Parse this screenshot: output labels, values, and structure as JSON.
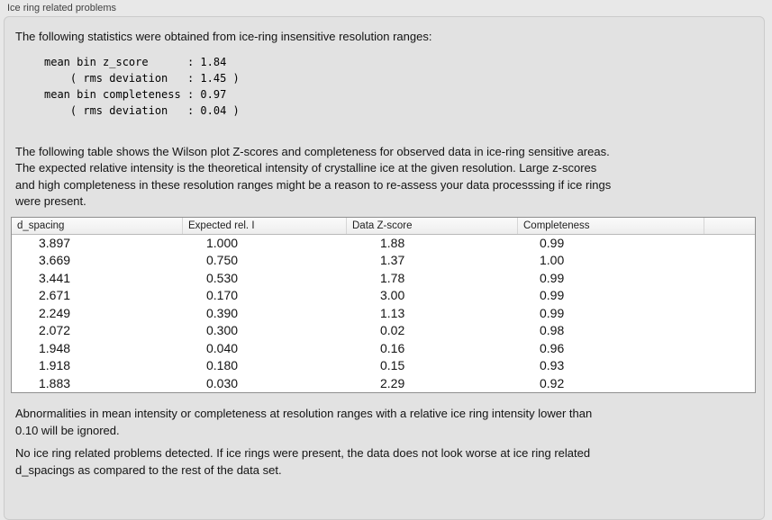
{
  "panel": {
    "title": "Ice ring related problems"
  },
  "stats": {
    "intro": "The following statistics were obtained from ice-ring insensitive resolution ranges:",
    "block": "mean bin z_score      : 1.84\n    ( rms deviation   : 1.45 )\nmean bin completeness : 0.97\n    ( rms deviation   : 0.04 )"
  },
  "table": {
    "description": "The following table shows the Wilson plot Z-scores and completeness for observed data in ice-ring sensitive areas.\nThe expected relative intensity is the theoretical intensity of crystalline ice at the given resolution. Large z-scores\nand high completeness in these resolution ranges might be a reason to re-assess your data processsing if ice rings\nwere present.",
    "columns": [
      "d_spacing",
      "Expected rel. I",
      "Data Z-score",
      "Completeness",
      ""
    ],
    "rows": [
      [
        "3.897",
        "1.000",
        "1.88",
        "0.99"
      ],
      [
        "3.669",
        "0.750",
        "1.37",
        "1.00"
      ],
      [
        "3.441",
        "0.530",
        "1.78",
        "0.99"
      ],
      [
        "2.671",
        "0.170",
        "3.00",
        "0.99"
      ],
      [
        "2.249",
        "0.390",
        "1.13",
        "0.99"
      ],
      [
        "2.072",
        "0.300",
        "0.02",
        "0.98"
      ],
      [
        "1.948",
        "0.040",
        "0.16",
        "0.96"
      ],
      [
        "1.918",
        "0.180",
        "0.15",
        "0.93"
      ],
      [
        "1.883",
        "0.030",
        "2.29",
        "0.92"
      ]
    ]
  },
  "notes": {
    "ignore": "Abnormalities in mean intensity or completeness at resolution ranges with a relative ice ring intensity lower than\n0.10 will be ignored.",
    "conclusion": "No ice ring related problems detected. If ice rings were present, the data does not look worse at ice ring related\nd_spacings as compared to the rest of the data set."
  },
  "colors": {
    "page_bg": "#e8e8e8",
    "box_bg": "#e2e2e2",
    "box_border": "#cbcbcb",
    "text": "#131313",
    "title": "#3f3f3f",
    "table_border": "#8f8f8f",
    "header_sep": "#d6d6d6",
    "header_bottom": "#b9b9b9"
  }
}
